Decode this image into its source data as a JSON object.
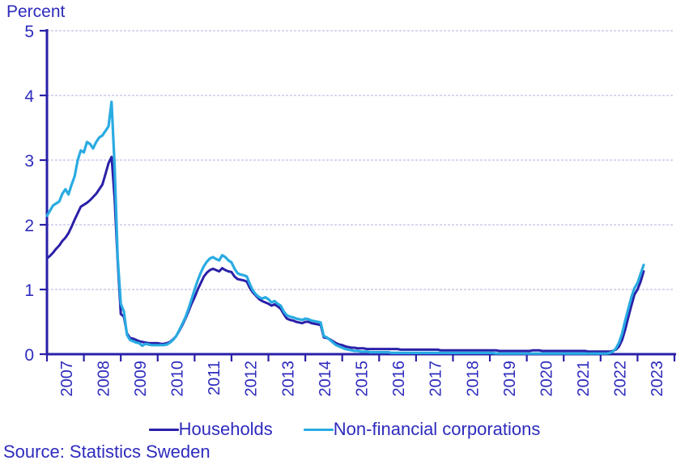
{
  "title": "Percent",
  "source_note": "Source: Statistics Sweden",
  "colors": {
    "ink": "#2e2bbd",
    "axis": "#2a20a8",
    "households": "#2a20a8",
    "corporations": "#29abe2",
    "gridline": "#ccccec"
  },
  "legend": {
    "items": [
      {
        "label": "Households",
        "color_key": "households"
      },
      {
        "label": "Non-financial corporations",
        "color_key": "corporations"
      }
    ]
  },
  "chart_data": {
    "type": "line",
    "title": "Percent",
    "ylabel": "Percent",
    "xlabel": "",
    "ylim": [
      0,
      5
    ],
    "yticks": [
      0,
      1,
      2,
      3,
      4,
      5
    ],
    "grid": "horizontal-dashed",
    "legend_position": "bottom-center",
    "frequency": "monthly",
    "x_start_month": "2007-01",
    "x_end_month": "2023-03",
    "x_year_labels": [
      "2007",
      "2008",
      "2009",
      "2010",
      "2011",
      "2012",
      "2013",
      "2014",
      "2015",
      "2016",
      "2017",
      "2018",
      "2019",
      "2020",
      "2021",
      "2022",
      "2023"
    ],
    "series": [
      {
        "name": "Households",
        "color_key": "households",
        "values": [
          1.48,
          1.52,
          1.57,
          1.63,
          1.68,
          1.75,
          1.8,
          1.87,
          1.97,
          2.08,
          2.18,
          2.28,
          2.31,
          2.34,
          2.38,
          2.43,
          2.48,
          2.55,
          2.62,
          2.78,
          2.95,
          3.05,
          2.4,
          1.42,
          0.62,
          0.58,
          0.32,
          0.25,
          0.24,
          0.22,
          0.2,
          0.19,
          0.18,
          0.17,
          0.17,
          0.17,
          0.17,
          0.16,
          0.16,
          0.17,
          0.19,
          0.23,
          0.28,
          0.36,
          0.45,
          0.55,
          0.66,
          0.78,
          0.88,
          1.0,
          1.1,
          1.2,
          1.26,
          1.3,
          1.32,
          1.3,
          1.28,
          1.33,
          1.3,
          1.28,
          1.27,
          1.2,
          1.16,
          1.15,
          1.14,
          1.12,
          1.02,
          0.95,
          0.9,
          0.85,
          0.82,
          0.8,
          0.78,
          0.75,
          0.77,
          0.74,
          0.7,
          0.62,
          0.55,
          0.53,
          0.52,
          0.5,
          0.49,
          0.48,
          0.5,
          0.5,
          0.48,
          0.47,
          0.46,
          0.45,
          0.26,
          0.25,
          0.23,
          0.2,
          0.17,
          0.15,
          0.14,
          0.12,
          0.11,
          0.1,
          0.1,
          0.09,
          0.09,
          0.09,
          0.08,
          0.08,
          0.08,
          0.08,
          0.08,
          0.08,
          0.08,
          0.08,
          0.08,
          0.08,
          0.08,
          0.07,
          0.07,
          0.07,
          0.07,
          0.07,
          0.07,
          0.07,
          0.07,
          0.07,
          0.07,
          0.07,
          0.07,
          0.07,
          0.06,
          0.06,
          0.06,
          0.06,
          0.06,
          0.06,
          0.06,
          0.06,
          0.06,
          0.06,
          0.06,
          0.06,
          0.06,
          0.06,
          0.06,
          0.06,
          0.06,
          0.06,
          0.06,
          0.05,
          0.05,
          0.05,
          0.05,
          0.05,
          0.05,
          0.05,
          0.05,
          0.05,
          0.05,
          0.05,
          0.06,
          0.06,
          0.06,
          0.05,
          0.05,
          0.05,
          0.05,
          0.05,
          0.05,
          0.05,
          0.05,
          0.05,
          0.05,
          0.05,
          0.05,
          0.05,
          0.05,
          0.05,
          0.04,
          0.04,
          0.04,
          0.04,
          0.04,
          0.04,
          0.04,
          0.04,
          0.05,
          0.07,
          0.12,
          0.22,
          0.38,
          0.57,
          0.75,
          0.92,
          1.0,
          1.12,
          1.28
        ]
      },
      {
        "name": "Non-financial corporations",
        "color_key": "corporations",
        "values": [
          2.14,
          2.22,
          2.3,
          2.33,
          2.36,
          2.48,
          2.55,
          2.47,
          2.62,
          2.75,
          3.0,
          3.15,
          3.12,
          3.28,
          3.25,
          3.18,
          3.28,
          3.35,
          3.38,
          3.45,
          3.52,
          3.9,
          2.9,
          1.48,
          0.78,
          0.66,
          0.3,
          0.22,
          0.2,
          0.18,
          0.17,
          0.13,
          0.16,
          0.15,
          0.14,
          0.14,
          0.14,
          0.14,
          0.14,
          0.15,
          0.18,
          0.22,
          0.28,
          0.37,
          0.47,
          0.57,
          0.7,
          0.85,
          1.0,
          1.14,
          1.26,
          1.36,
          1.43,
          1.48,
          1.5,
          1.47,
          1.45,
          1.53,
          1.5,
          1.45,
          1.42,
          1.32,
          1.25,
          1.23,
          1.22,
          1.2,
          1.08,
          0.98,
          0.92,
          0.88,
          0.86,
          0.88,
          0.85,
          0.8,
          0.82,
          0.78,
          0.75,
          0.66,
          0.6,
          0.58,
          0.57,
          0.55,
          0.54,
          0.53,
          0.55,
          0.54,
          0.52,
          0.51,
          0.5,
          0.49,
          0.28,
          0.26,
          0.22,
          0.18,
          0.14,
          0.12,
          0.1,
          0.08,
          0.07,
          0.06,
          0.05,
          0.05,
          0.04,
          0.04,
          0.04,
          0.03,
          0.03,
          0.03,
          0.03,
          0.03,
          0.03,
          0.03,
          0.02,
          0.02,
          0.02,
          0.02,
          0.02,
          0.02,
          0.02,
          0.02,
          0.02,
          0.02,
          0.02,
          0.02,
          0.02,
          0.02,
          0.02,
          0.02,
          0.02,
          0.02,
          0.02,
          0.02,
          0.02,
          0.02,
          0.02,
          0.02,
          0.02,
          0.02,
          0.02,
          0.02,
          0.02,
          0.02,
          0.02,
          0.02,
          0.02,
          0.02,
          0.01,
          0.01,
          0.01,
          0.01,
          0.01,
          0.01,
          0.01,
          0.01,
          0.01,
          0.01,
          0.01,
          0.01,
          0.01,
          0.01,
          0.01,
          0.01,
          0.01,
          0.01,
          0.01,
          0.01,
          0.01,
          0.01,
          0.01,
          0.01,
          0.01,
          0.01,
          0.01,
          0.01,
          0.01,
          0.01,
          0.01,
          0.01,
          0.01,
          0.01,
          0.01,
          0.01,
          0.01,
          0.02,
          0.04,
          0.09,
          0.18,
          0.32,
          0.52,
          0.7,
          0.88,
          1.02,
          1.1,
          1.24,
          1.38
        ]
      }
    ]
  }
}
